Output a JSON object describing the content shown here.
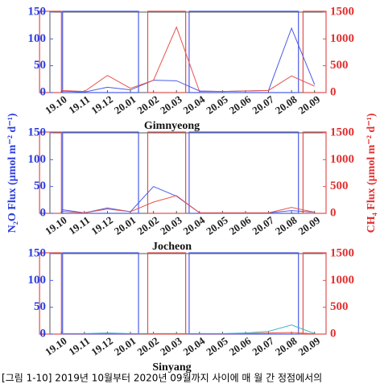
{
  "chart_data": [
    {
      "type": "line",
      "title": "Gimnyeong",
      "categories": [
        "19.10",
        "19.11",
        "19.12",
        "20.01",
        "20.02",
        "20.03",
        "20.04",
        "20.05",
        "20.06",
        "20.07",
        "20.08",
        "20.09"
      ],
      "series": [
        {
          "name": "N₂O",
          "color": "#4b5ce8",
          "values": [
            3,
            1,
            10,
            5,
            23,
            22,
            3,
            2,
            3,
            4,
            120,
            15
          ]
        },
        {
          "name": "CH₄",
          "color": "#e8554b",
          "axis": "y2",
          "values": [
            40,
            20,
            320,
            80,
            230,
            1220,
            20,
            20,
            30,
            40,
            310,
            120
          ]
        }
      ],
      "ylim": [
        0,
        150
      ],
      "yticks": [
        0,
        50,
        100,
        150
      ],
      "y2lim": [
        0,
        1500
      ],
      "y2ticks": [
        0,
        500,
        1000,
        1500
      ]
    },
    {
      "type": "line",
      "title": "Jocheon",
      "ylabel": "N₂O Flux (μmol m⁻² d⁻¹)",
      "y2label": "CH₄ Flux (μmol m⁻² d⁻¹)",
      "categories": [
        "19.10",
        "19.11",
        "19.12",
        "20.01",
        "20.02",
        "20.03",
        "20.04",
        "20.05",
        "20.06",
        "20.07",
        "20.08",
        "20.09"
      ],
      "series": [
        {
          "name": "N₂O",
          "color": "#4b5ce8",
          "values": [
            7,
            1,
            10,
            3,
            50,
            32,
            1,
            1,
            1,
            1,
            5,
            2
          ]
        },
        {
          "name": "CH₄",
          "color": "#e8554b",
          "axis": "y2",
          "values": [
            40,
            10,
            80,
            30,
            210,
            330,
            10,
            10,
            10,
            10,
            110,
            20
          ]
        }
      ],
      "ylim": [
        0,
        150
      ],
      "yticks": [
        0,
        50,
        100,
        150
      ],
      "y2lim": [
        0,
        1500
      ],
      "y2ticks": [
        0,
        500,
        1000,
        1500
      ]
    },
    {
      "type": "line",
      "title": "Sinyang",
      "categories": [
        "19.10",
        "19.11",
        "19.12",
        "20.01",
        "20.02",
        "20.03",
        "20.04",
        "20.05",
        "20.06",
        "20.07",
        "20.08",
        "20.09"
      ],
      "series": [
        {
          "name": "N₂O",
          "color": "#3bb8c4",
          "values": [
            1,
            1,
            2,
            1,
            1,
            1,
            1,
            1,
            2,
            5,
            17,
            1
          ]
        },
        {
          "name": "CH₄",
          "color": "#e8554b",
          "axis": "y2",
          "values": [
            5,
            5,
            10,
            5,
            5,
            5,
            5,
            5,
            10,
            20,
            30,
            5
          ]
        }
      ],
      "ylim": [
        0,
        150
      ],
      "yticks": [
        0,
        50,
        100,
        150
      ],
      "y2lim": [
        0,
        1500
      ],
      "y2ticks": [
        0,
        500,
        1000,
        1500
      ]
    }
  ],
  "caption": "[그림 1-10] 2019년 10월부터 2020년 09월까지 사이에 매 월 간 정점에서의"
}
